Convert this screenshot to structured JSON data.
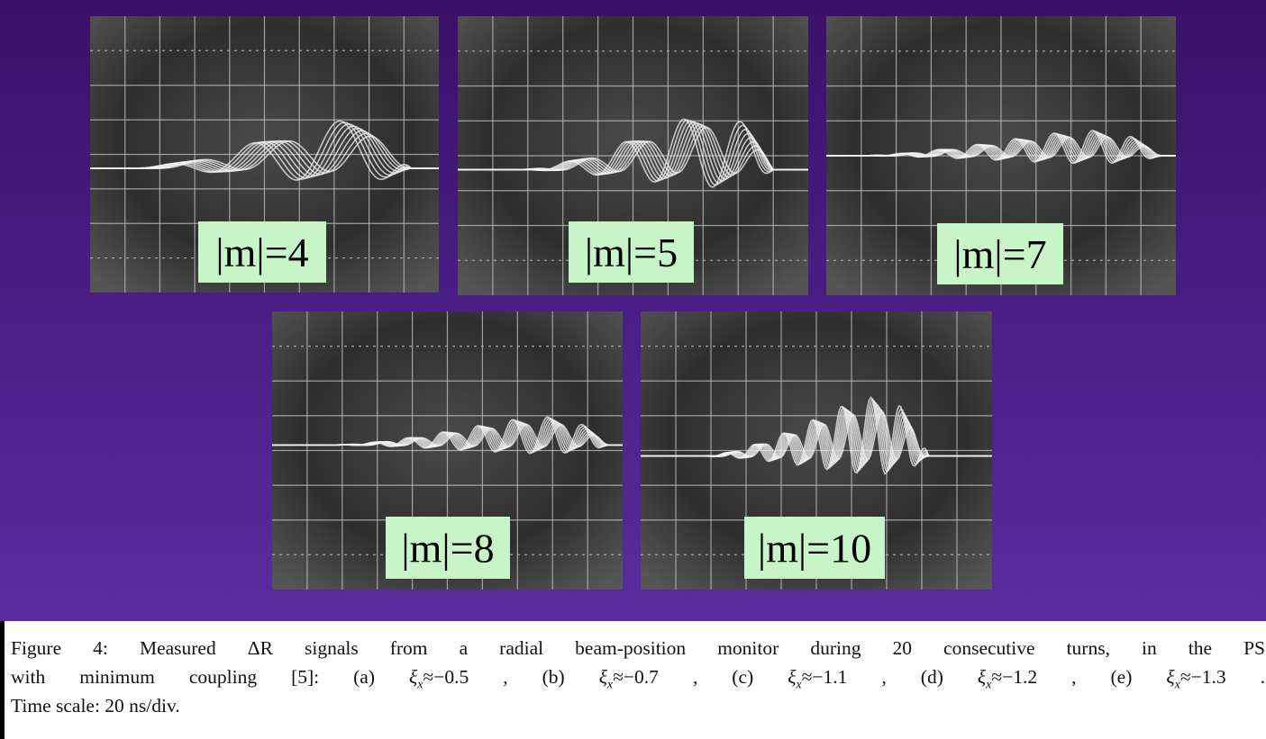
{
  "panels": [
    {
      "label": "|m|=4"
    },
    {
      "label": "|m|=5"
    },
    {
      "label": "|m|=7"
    },
    {
      "label": "|m|=8"
    },
    {
      "label": "|m|=10"
    }
  ],
  "caption": {
    "lines": [
      [
        "Figure 4: Measured ΔR signals from a radial beam-position monitor during 20 consecutive turns, in the PS"
      ],
      [
        "with minimum coupling [5]: (a)",
        {
          "symbol": "ξ",
          "subscript": "x",
          "relation": "≈−0.5"
        },
        ", (b)",
        {
          "symbol": "ξ",
          "subscript": "x",
          "relation": "≈−0.7"
        },
        ", (c)",
        {
          "symbol": "ξ",
          "subscript": "x",
          "relation": "≈−1.1"
        },
        ", (d)",
        {
          "symbol": "ξ",
          "subscript": "x",
          "relation": "≈−1.2"
        },
        ", (e)",
        {
          "symbol": "ξ",
          "subscript": "x",
          "relation": "≈−1.3"
        },
        "."
      ],
      [
        "Time scale: 20 ns/div."
      ]
    ]
  }
}
